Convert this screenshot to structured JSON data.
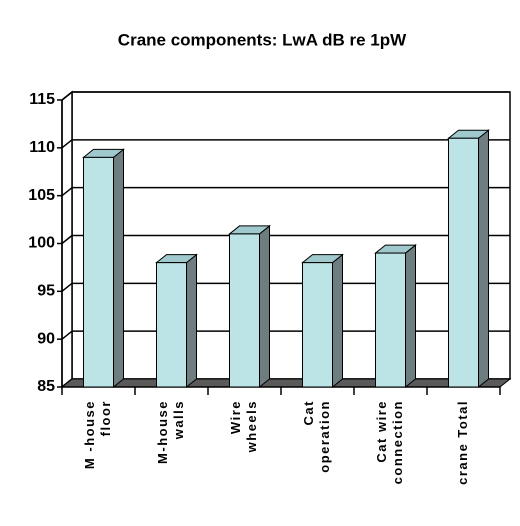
{
  "chart_data": {
    "type": "bar3d",
    "title": "Crane components: LwA dB re 1pW",
    "categories": [
      [
        "M -house",
        "floor"
      ],
      [
        "M-house",
        "walls"
      ],
      [
        "Wire",
        "wheels"
      ],
      [
        "Cat",
        "operation"
      ],
      [
        "Cat wire",
        "connection"
      ],
      [
        "crane Total"
      ]
    ],
    "values": [
      109,
      98,
      101,
      98,
      99,
      111
    ],
    "color": "#bce3e6",
    "ylim": [
      85,
      115
    ],
    "yticks": [
      85,
      90,
      95,
      100,
      105,
      110,
      115
    ],
    "grid": true
  }
}
